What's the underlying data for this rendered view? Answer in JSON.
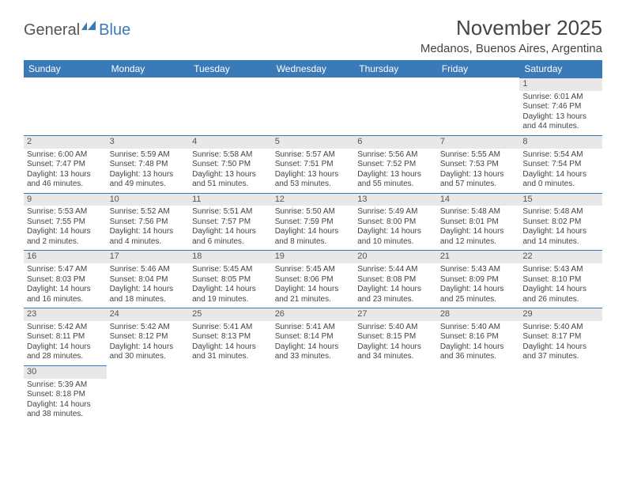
{
  "brand": {
    "part1": "General",
    "part2": "Blue",
    "flag_color": "#3a7ab8"
  },
  "title": "November 2025",
  "location": "Medanos, Buenos Aires, Argentina",
  "colors": {
    "header_bg": "#3a7ab8",
    "header_text": "#ffffff",
    "daynum_bg": "#e8e8e8",
    "row_border": "#3a7ab8",
    "text": "#444444",
    "page_bg": "#ffffff"
  },
  "fonts": {
    "title_pt": 26,
    "location_pt": 15,
    "dayheader_pt": 12,
    "body_pt": 10
  },
  "day_headers": [
    "Sunday",
    "Monday",
    "Tuesday",
    "Wednesday",
    "Thursday",
    "Friday",
    "Saturday"
  ],
  "weeks": [
    [
      {
        "blank": true
      },
      {
        "blank": true
      },
      {
        "blank": true
      },
      {
        "blank": true
      },
      {
        "blank": true
      },
      {
        "blank": true
      },
      {
        "n": "1",
        "sunrise": "Sunrise: 6:01 AM",
        "sunset": "Sunset: 7:46 PM",
        "daylight1": "Daylight: 13 hours",
        "daylight2": "and 44 minutes."
      }
    ],
    [
      {
        "n": "2",
        "sunrise": "Sunrise: 6:00 AM",
        "sunset": "Sunset: 7:47 PM",
        "daylight1": "Daylight: 13 hours",
        "daylight2": "and 46 minutes."
      },
      {
        "n": "3",
        "sunrise": "Sunrise: 5:59 AM",
        "sunset": "Sunset: 7:48 PM",
        "daylight1": "Daylight: 13 hours",
        "daylight2": "and 49 minutes."
      },
      {
        "n": "4",
        "sunrise": "Sunrise: 5:58 AM",
        "sunset": "Sunset: 7:50 PM",
        "daylight1": "Daylight: 13 hours",
        "daylight2": "and 51 minutes."
      },
      {
        "n": "5",
        "sunrise": "Sunrise: 5:57 AM",
        "sunset": "Sunset: 7:51 PM",
        "daylight1": "Daylight: 13 hours",
        "daylight2": "and 53 minutes."
      },
      {
        "n": "6",
        "sunrise": "Sunrise: 5:56 AM",
        "sunset": "Sunset: 7:52 PM",
        "daylight1": "Daylight: 13 hours",
        "daylight2": "and 55 minutes."
      },
      {
        "n": "7",
        "sunrise": "Sunrise: 5:55 AM",
        "sunset": "Sunset: 7:53 PM",
        "daylight1": "Daylight: 13 hours",
        "daylight2": "and 57 minutes."
      },
      {
        "n": "8",
        "sunrise": "Sunrise: 5:54 AM",
        "sunset": "Sunset: 7:54 PM",
        "daylight1": "Daylight: 14 hours",
        "daylight2": "and 0 minutes."
      }
    ],
    [
      {
        "n": "9",
        "sunrise": "Sunrise: 5:53 AM",
        "sunset": "Sunset: 7:55 PM",
        "daylight1": "Daylight: 14 hours",
        "daylight2": "and 2 minutes."
      },
      {
        "n": "10",
        "sunrise": "Sunrise: 5:52 AM",
        "sunset": "Sunset: 7:56 PM",
        "daylight1": "Daylight: 14 hours",
        "daylight2": "and 4 minutes."
      },
      {
        "n": "11",
        "sunrise": "Sunrise: 5:51 AM",
        "sunset": "Sunset: 7:57 PM",
        "daylight1": "Daylight: 14 hours",
        "daylight2": "and 6 minutes."
      },
      {
        "n": "12",
        "sunrise": "Sunrise: 5:50 AM",
        "sunset": "Sunset: 7:59 PM",
        "daylight1": "Daylight: 14 hours",
        "daylight2": "and 8 minutes."
      },
      {
        "n": "13",
        "sunrise": "Sunrise: 5:49 AM",
        "sunset": "Sunset: 8:00 PM",
        "daylight1": "Daylight: 14 hours",
        "daylight2": "and 10 minutes."
      },
      {
        "n": "14",
        "sunrise": "Sunrise: 5:48 AM",
        "sunset": "Sunset: 8:01 PM",
        "daylight1": "Daylight: 14 hours",
        "daylight2": "and 12 minutes."
      },
      {
        "n": "15",
        "sunrise": "Sunrise: 5:48 AM",
        "sunset": "Sunset: 8:02 PM",
        "daylight1": "Daylight: 14 hours",
        "daylight2": "and 14 minutes."
      }
    ],
    [
      {
        "n": "16",
        "sunrise": "Sunrise: 5:47 AM",
        "sunset": "Sunset: 8:03 PM",
        "daylight1": "Daylight: 14 hours",
        "daylight2": "and 16 minutes."
      },
      {
        "n": "17",
        "sunrise": "Sunrise: 5:46 AM",
        "sunset": "Sunset: 8:04 PM",
        "daylight1": "Daylight: 14 hours",
        "daylight2": "and 18 minutes."
      },
      {
        "n": "18",
        "sunrise": "Sunrise: 5:45 AM",
        "sunset": "Sunset: 8:05 PM",
        "daylight1": "Daylight: 14 hours",
        "daylight2": "and 19 minutes."
      },
      {
        "n": "19",
        "sunrise": "Sunrise: 5:45 AM",
        "sunset": "Sunset: 8:06 PM",
        "daylight1": "Daylight: 14 hours",
        "daylight2": "and 21 minutes."
      },
      {
        "n": "20",
        "sunrise": "Sunrise: 5:44 AM",
        "sunset": "Sunset: 8:08 PM",
        "daylight1": "Daylight: 14 hours",
        "daylight2": "and 23 minutes."
      },
      {
        "n": "21",
        "sunrise": "Sunrise: 5:43 AM",
        "sunset": "Sunset: 8:09 PM",
        "daylight1": "Daylight: 14 hours",
        "daylight2": "and 25 minutes."
      },
      {
        "n": "22",
        "sunrise": "Sunrise: 5:43 AM",
        "sunset": "Sunset: 8:10 PM",
        "daylight1": "Daylight: 14 hours",
        "daylight2": "and 26 minutes."
      }
    ],
    [
      {
        "n": "23",
        "sunrise": "Sunrise: 5:42 AM",
        "sunset": "Sunset: 8:11 PM",
        "daylight1": "Daylight: 14 hours",
        "daylight2": "and 28 minutes."
      },
      {
        "n": "24",
        "sunrise": "Sunrise: 5:42 AM",
        "sunset": "Sunset: 8:12 PM",
        "daylight1": "Daylight: 14 hours",
        "daylight2": "and 30 minutes."
      },
      {
        "n": "25",
        "sunrise": "Sunrise: 5:41 AM",
        "sunset": "Sunset: 8:13 PM",
        "daylight1": "Daylight: 14 hours",
        "daylight2": "and 31 minutes."
      },
      {
        "n": "26",
        "sunrise": "Sunrise: 5:41 AM",
        "sunset": "Sunset: 8:14 PM",
        "daylight1": "Daylight: 14 hours",
        "daylight2": "and 33 minutes."
      },
      {
        "n": "27",
        "sunrise": "Sunrise: 5:40 AM",
        "sunset": "Sunset: 8:15 PM",
        "daylight1": "Daylight: 14 hours",
        "daylight2": "and 34 minutes."
      },
      {
        "n": "28",
        "sunrise": "Sunrise: 5:40 AM",
        "sunset": "Sunset: 8:16 PM",
        "daylight1": "Daylight: 14 hours",
        "daylight2": "and 36 minutes."
      },
      {
        "n": "29",
        "sunrise": "Sunrise: 5:40 AM",
        "sunset": "Sunset: 8:17 PM",
        "daylight1": "Daylight: 14 hours",
        "daylight2": "and 37 minutes."
      }
    ],
    [
      {
        "n": "30",
        "sunrise": "Sunrise: 5:39 AM",
        "sunset": "Sunset: 8:18 PM",
        "daylight1": "Daylight: 14 hours",
        "daylight2": "and 38 minutes."
      },
      {
        "blank": true
      },
      {
        "blank": true
      },
      {
        "blank": true
      },
      {
        "blank": true
      },
      {
        "blank": true
      },
      {
        "blank": true
      }
    ]
  ]
}
